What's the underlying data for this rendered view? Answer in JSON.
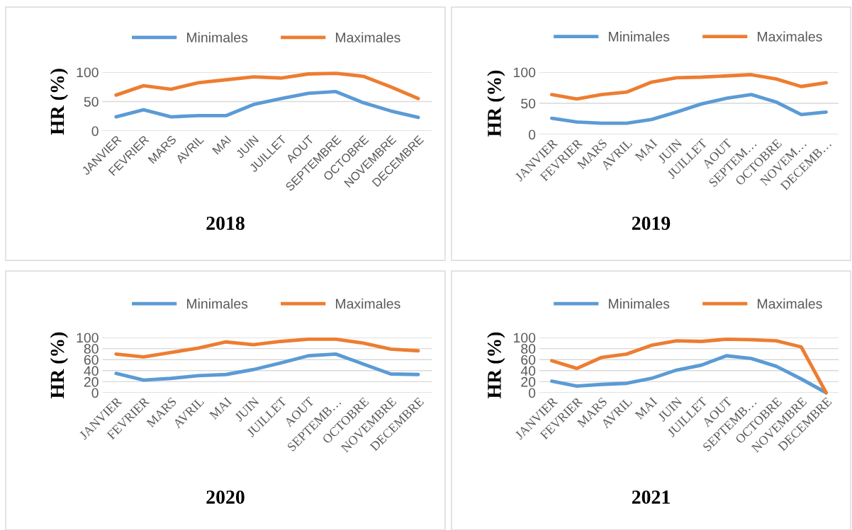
{
  "chart_data": [
    {
      "type": "line",
      "title": "2018",
      "ylabel": "HR (%)",
      "categories": [
        "JANVIER",
        "FEVRIER",
        "MARS",
        "AVRIL",
        "MAI",
        "JUIN",
        "JUILLET",
        "AOUT",
        "SEPTEMBRE",
        "OCTOBRE",
        "NOVEMBRE",
        "DECEMBRE"
      ],
      "ylim": [
        0,
        100
      ],
      "yticks": [
        0,
        50,
        100
      ],
      "grid": "y",
      "legend": "top",
      "marker": "none",
      "line_style": "solid",
      "series": [
        {
          "name": "Minimales",
          "color": "#5b9bd5",
          "values": [
            24,
            36,
            24,
            26,
            26,
            45,
            55,
            64,
            67,
            48,
            34,
            23
          ]
        },
        {
          "name": "Maximales",
          "color": "#ed7d31",
          "values": [
            61,
            77,
            71,
            82,
            87,
            92,
            90,
            97,
            98,
            93,
            75,
            55
          ]
        }
      ]
    },
    {
      "type": "line",
      "title": "2019",
      "ylabel": "HR (%)",
      "categories": [
        "JANVIER",
        "FEVRIER",
        "MARS",
        "AVRIL",
        "MAI",
        "JUIN",
        "JUILLET",
        "AOUT",
        "SEPTEM…",
        "OCTOBRE",
        "NOVEM…",
        "DECEMB…"
      ],
      "ylim": [
        0,
        100
      ],
      "yticks": [
        0,
        50,
        100
      ],
      "grid": "y",
      "legend": "top",
      "marker": "none",
      "line_style": "solid",
      "series": [
        {
          "name": "Minimales",
          "color": "#5b9bd5",
          "values": [
            26,
            20,
            18,
            18,
            24,
            36,
            49,
            58,
            64,
            52,
            32,
            36
          ]
        },
        {
          "name": "Maximales",
          "color": "#ed7d31",
          "values": [
            64,
            57,
            64,
            68,
            84,
            91,
            92,
            94,
            96,
            89,
            77,
            83
          ]
        }
      ]
    },
    {
      "type": "line",
      "title": "2020",
      "ylabel": "HR (%)",
      "categories": [
        "JANVIER",
        "FEVRIER",
        "MARS",
        "AVRIL",
        "MAI",
        "JUIN",
        "JUILLET",
        "AOUT",
        "SEPTEMB…",
        "OCTOBRE",
        "NOVEMBRE",
        "DECEMBRE"
      ],
      "ylim": [
        0,
        100
      ],
      "yticks": [
        0,
        20,
        40,
        60,
        80,
        100
      ],
      "grid": "y",
      "legend": "top",
      "marker": "none",
      "line_style": "solid",
      "series": [
        {
          "name": "Minimales",
          "color": "#5b9bd5",
          "values": [
            35,
            23,
            26,
            31,
            33,
            42,
            54,
            67,
            70,
            52,
            34,
            33
          ]
        },
        {
          "name": "Maximales",
          "color": "#ed7d31",
          "values": [
            70,
            65,
            73,
            81,
            92,
            87,
            93,
            97,
            97,
            90,
            79,
            76
          ]
        }
      ]
    },
    {
      "type": "line",
      "title": "2021",
      "ylabel": "HR (%)",
      "categories": [
        "JANVIER",
        "FEVRIER",
        "MARS",
        "AVRIL",
        "MAI",
        "JUIN",
        "JUILLET",
        "AOUT",
        "SEPTEMB…",
        "OCTOBRE",
        "NOVEMBRE",
        "DECEMBRE"
      ],
      "ylim": [
        0,
        100
      ],
      "yticks": [
        0,
        20,
        40,
        60,
        80,
        100
      ],
      "grid": "y",
      "legend": "top",
      "marker": "none",
      "line_style": "solid",
      "series": [
        {
          "name": "Minimales",
          "color": "#5b9bd5",
          "values": [
            21,
            12,
            15,
            17,
            26,
            41,
            50,
            67,
            62,
            48,
            25,
            0
          ]
        },
        {
          "name": "Maximales",
          "color": "#ed7d31",
          "values": [
            58,
            44,
            64,
            70,
            86,
            94,
            93,
            97,
            96,
            94,
            83,
            0
          ]
        }
      ]
    }
  ]
}
